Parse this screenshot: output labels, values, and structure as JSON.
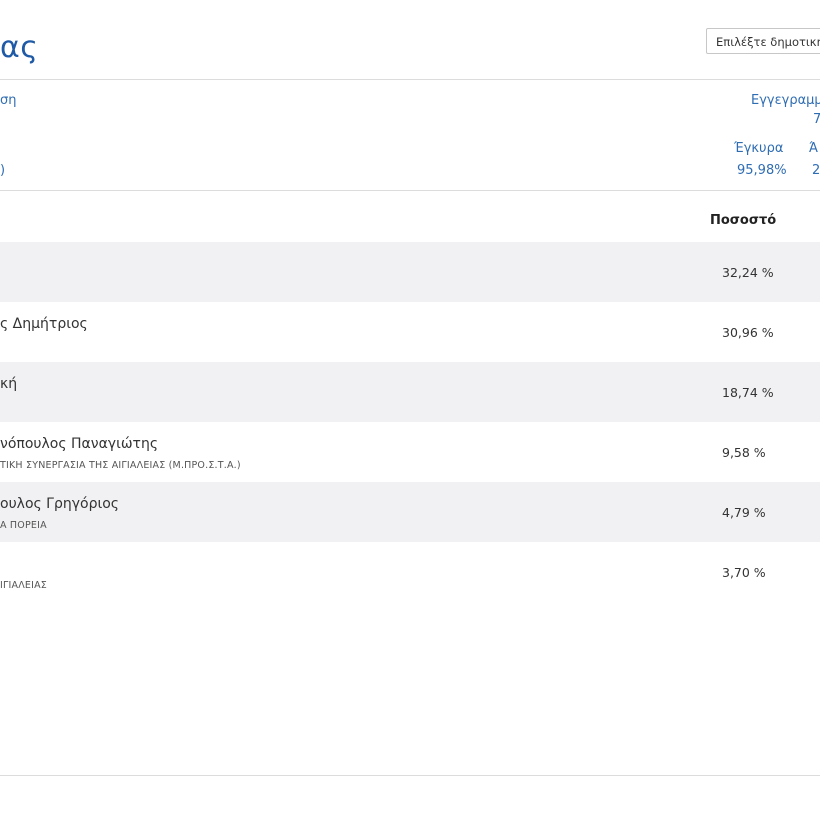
{
  "header": {
    "title": "ας",
    "municipality_select": "Επιλέξτε δημοτική"
  },
  "summary": {
    "link_top": "ση",
    "link_bottom": ")",
    "registered_label": "Εγγεγραμμ",
    "registered_value": "7",
    "valid_label": "Έγκυρα",
    "valid_value": "95,98%",
    "invalid_label": "Ά",
    "invalid_value": "2"
  },
  "table": {
    "percent_header": "Ποσοστό",
    "rows": [
      {
        "name": "",
        "party": "",
        "percent": "32,24 %"
      },
      {
        "name": "ς Δημήτριος",
        "party": "",
        "percent": "30,96 %"
      },
      {
        "name": "κή",
        "party": "",
        "percent": "18,74 %"
      },
      {
        "name": "νόπουλος Παναγιώτης",
        "party": "ΤΙΚΗ ΣΥΝΕΡΓΑΣΙΑ ΤΗΣ ΑΙΓΙΑΛΕΙΑΣ (Μ.ΠΡΟ.Σ.Τ.Α.)",
        "percent": "9,58 %"
      },
      {
        "name": "ουλος Γρηγόριος",
        "party": "Α ΠΟΡΕΙΑ",
        "percent": "4,79 %"
      },
      {
        "name": "",
        "party": "ΙΓΙΑΛΕΙΑΣ",
        "percent": "3,70 %"
      }
    ]
  }
}
